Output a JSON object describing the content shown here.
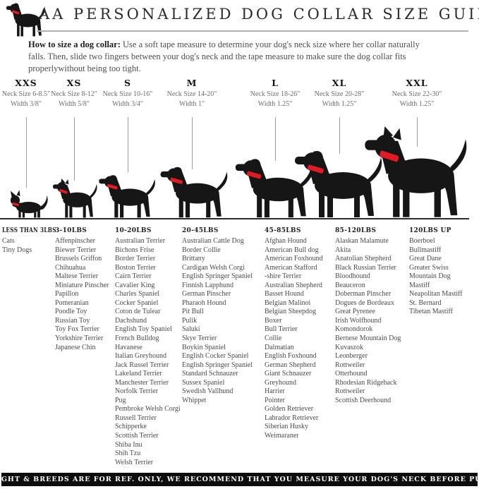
{
  "header": {
    "title": "AA PERSONALIZED DOG COLLAR SIZE GUIDE"
  },
  "instructions": {
    "lead": "How to size a dog collar:",
    "body": "Use a soft tape measure to determine your dog's neck size where her collar naturally falls. Then, slide two fingers between your dog's neck and the tape measure to make sure the dog collar fits properlywithout being too tight."
  },
  "sizes": [
    {
      "label": "XXS",
      "neck": "Neck Size 6-8.5\"",
      "width": "Width 3/8\""
    },
    {
      "label": "XS",
      "neck": "Neck Size 8-12\"",
      "width": "Width 5/8\""
    },
    {
      "label": "S",
      "neck": "Neck Size 10-16\"",
      "width": "Width 3/4\""
    },
    {
      "label": "M",
      "neck": "Neck Size 14-20\"",
      "width": "Width 1\""
    },
    {
      "label": "L",
      "neck": "Neck Size 18-26\"",
      "width": "Width 1.25\""
    },
    {
      "label": "XL",
      "neck": "Neck Size 20-28\"",
      "width": "Width 1.25\""
    },
    {
      "label": "XXL",
      "neck": "Neck Size 22-30\"",
      "width": "Width 1.25\""
    }
  ],
  "breeds": [
    {
      "header": "LESS THAN 3LBS",
      "items": [
        "Cats",
        "Tiny Dogs"
      ]
    },
    {
      "header": "3-10LBS",
      "items": [
        "Affenpinscher",
        "Biewer Terrier",
        "Brussels Griffon",
        "Chihuahua",
        "Maltese Terrier",
        "Miniature Pinscher",
        "Papillon",
        "Pomeranian",
        "Poodle Toy",
        "Russian Toy",
        "Toy Fox Terrier",
        "Yorkshire Terrier",
        "Japanese Chin"
      ]
    },
    {
      "header": "10-20LBS",
      "items": [
        "Australian Terrier",
        "Bichons Frise",
        "Border Terrier",
        "Boston Terrier",
        "Cairn Terrier",
        "Cavalier King",
        "Charles Spaniel",
        "Cocker Spaniel",
        "Coton de Tulear",
        "Dachshund",
        "English Toy Spaniel",
        "French Bulldog",
        "Havanese",
        "Italian Greyhound",
        "Jack Russel Terrier",
        "Lakeland Terrier",
        "Manchester Terrier",
        "Norfolk Terrier",
        "Pug",
        "Pembroke Welsh Corgi",
        "Russell Terrier",
        "Schipperke",
        "Scottish Terrier",
        "Shiba Inu",
        "Shih Tzu",
        "Welsh Terrier"
      ]
    },
    {
      "header": "20-45LBS",
      "items": [
        "Australian Cattle Dog",
        "Border Collie",
        "Brittany",
        "Cardigan Welsh Corgi",
        "English Springer Spaniel",
        "Finnish Lapphund",
        "German Pinscher",
        "Pharaoh Hound",
        "Pit Bull",
        "Pulik",
        "Saluki",
        "Skye Terrier",
        "Boykin Spaniel",
        "English Cocker Spaniel",
        "English Springer Spaniel",
        "Standard Schnauzer",
        "Sussex Spaniel",
        "Swedish Vallhund",
        "Whippet"
      ]
    },
    {
      "header": "45-85LBS",
      "items": [
        "Afghan Hound",
        "American Bull dog",
        "American Foxhound",
        "American Stafford",
        "-shire Terrier",
        "Australian Shepherd",
        "Basset Hound",
        "Belgian Malinoi",
        "Belgian Sheepdog",
        "Boxer",
        "Bull Terrier",
        "Collie",
        "Dalmatian",
        "English Foxhound",
        "German Shepherd",
        "Giant Schnauzer",
        "Greyhound",
        "Harrier",
        "Pointer",
        "Golden Retriever",
        "Labrador Retriever",
        "Siberian Husky",
        "Weimaraner"
      ]
    },
    {
      "header": "85-120LBS",
      "items": [
        "Alaskan Malamute",
        "Akita",
        "Anatolian Shepherd",
        "Black Russian Terrier",
        "Bloodhound",
        "Beauceron",
        "Doberman Pinscher",
        "Dogues de Bordeaux",
        "Great Pyrenee",
        "Irish Wolfhound",
        "Komondorok",
        "Bernese Mountain Dog",
        "Kuvaszok",
        "Leonberger",
        "Rottweiler",
        "Otterhound",
        "Rhodesian Ridgeback",
        "Rottweiler",
        "Scottish Deerhound"
      ]
    },
    {
      "header": "120LBS UP",
      "items": [
        "Boerboel",
        "Bullmastiff",
        "Great Dane",
        "Greater Swiss",
        "Mountain Dog",
        "Mastiff",
        "Neapolitan Mastiff",
        "St. Bernard",
        "Tibetan Mastiff"
      ]
    }
  ],
  "footer": {
    "text": "DOG WEIGHT & BREEDS ARE FOR REF. ONLY, WE RECOMMEND THAT YOU MEASURE YOUR DOG'S NECK BEFORE PURCHASE"
  },
  "colors": {
    "collar_red": "#e01b24",
    "footer_bg": "#0d0d0d",
    "rule_gray": "#b0b0b0",
    "silhouette_black": "#161616"
  }
}
